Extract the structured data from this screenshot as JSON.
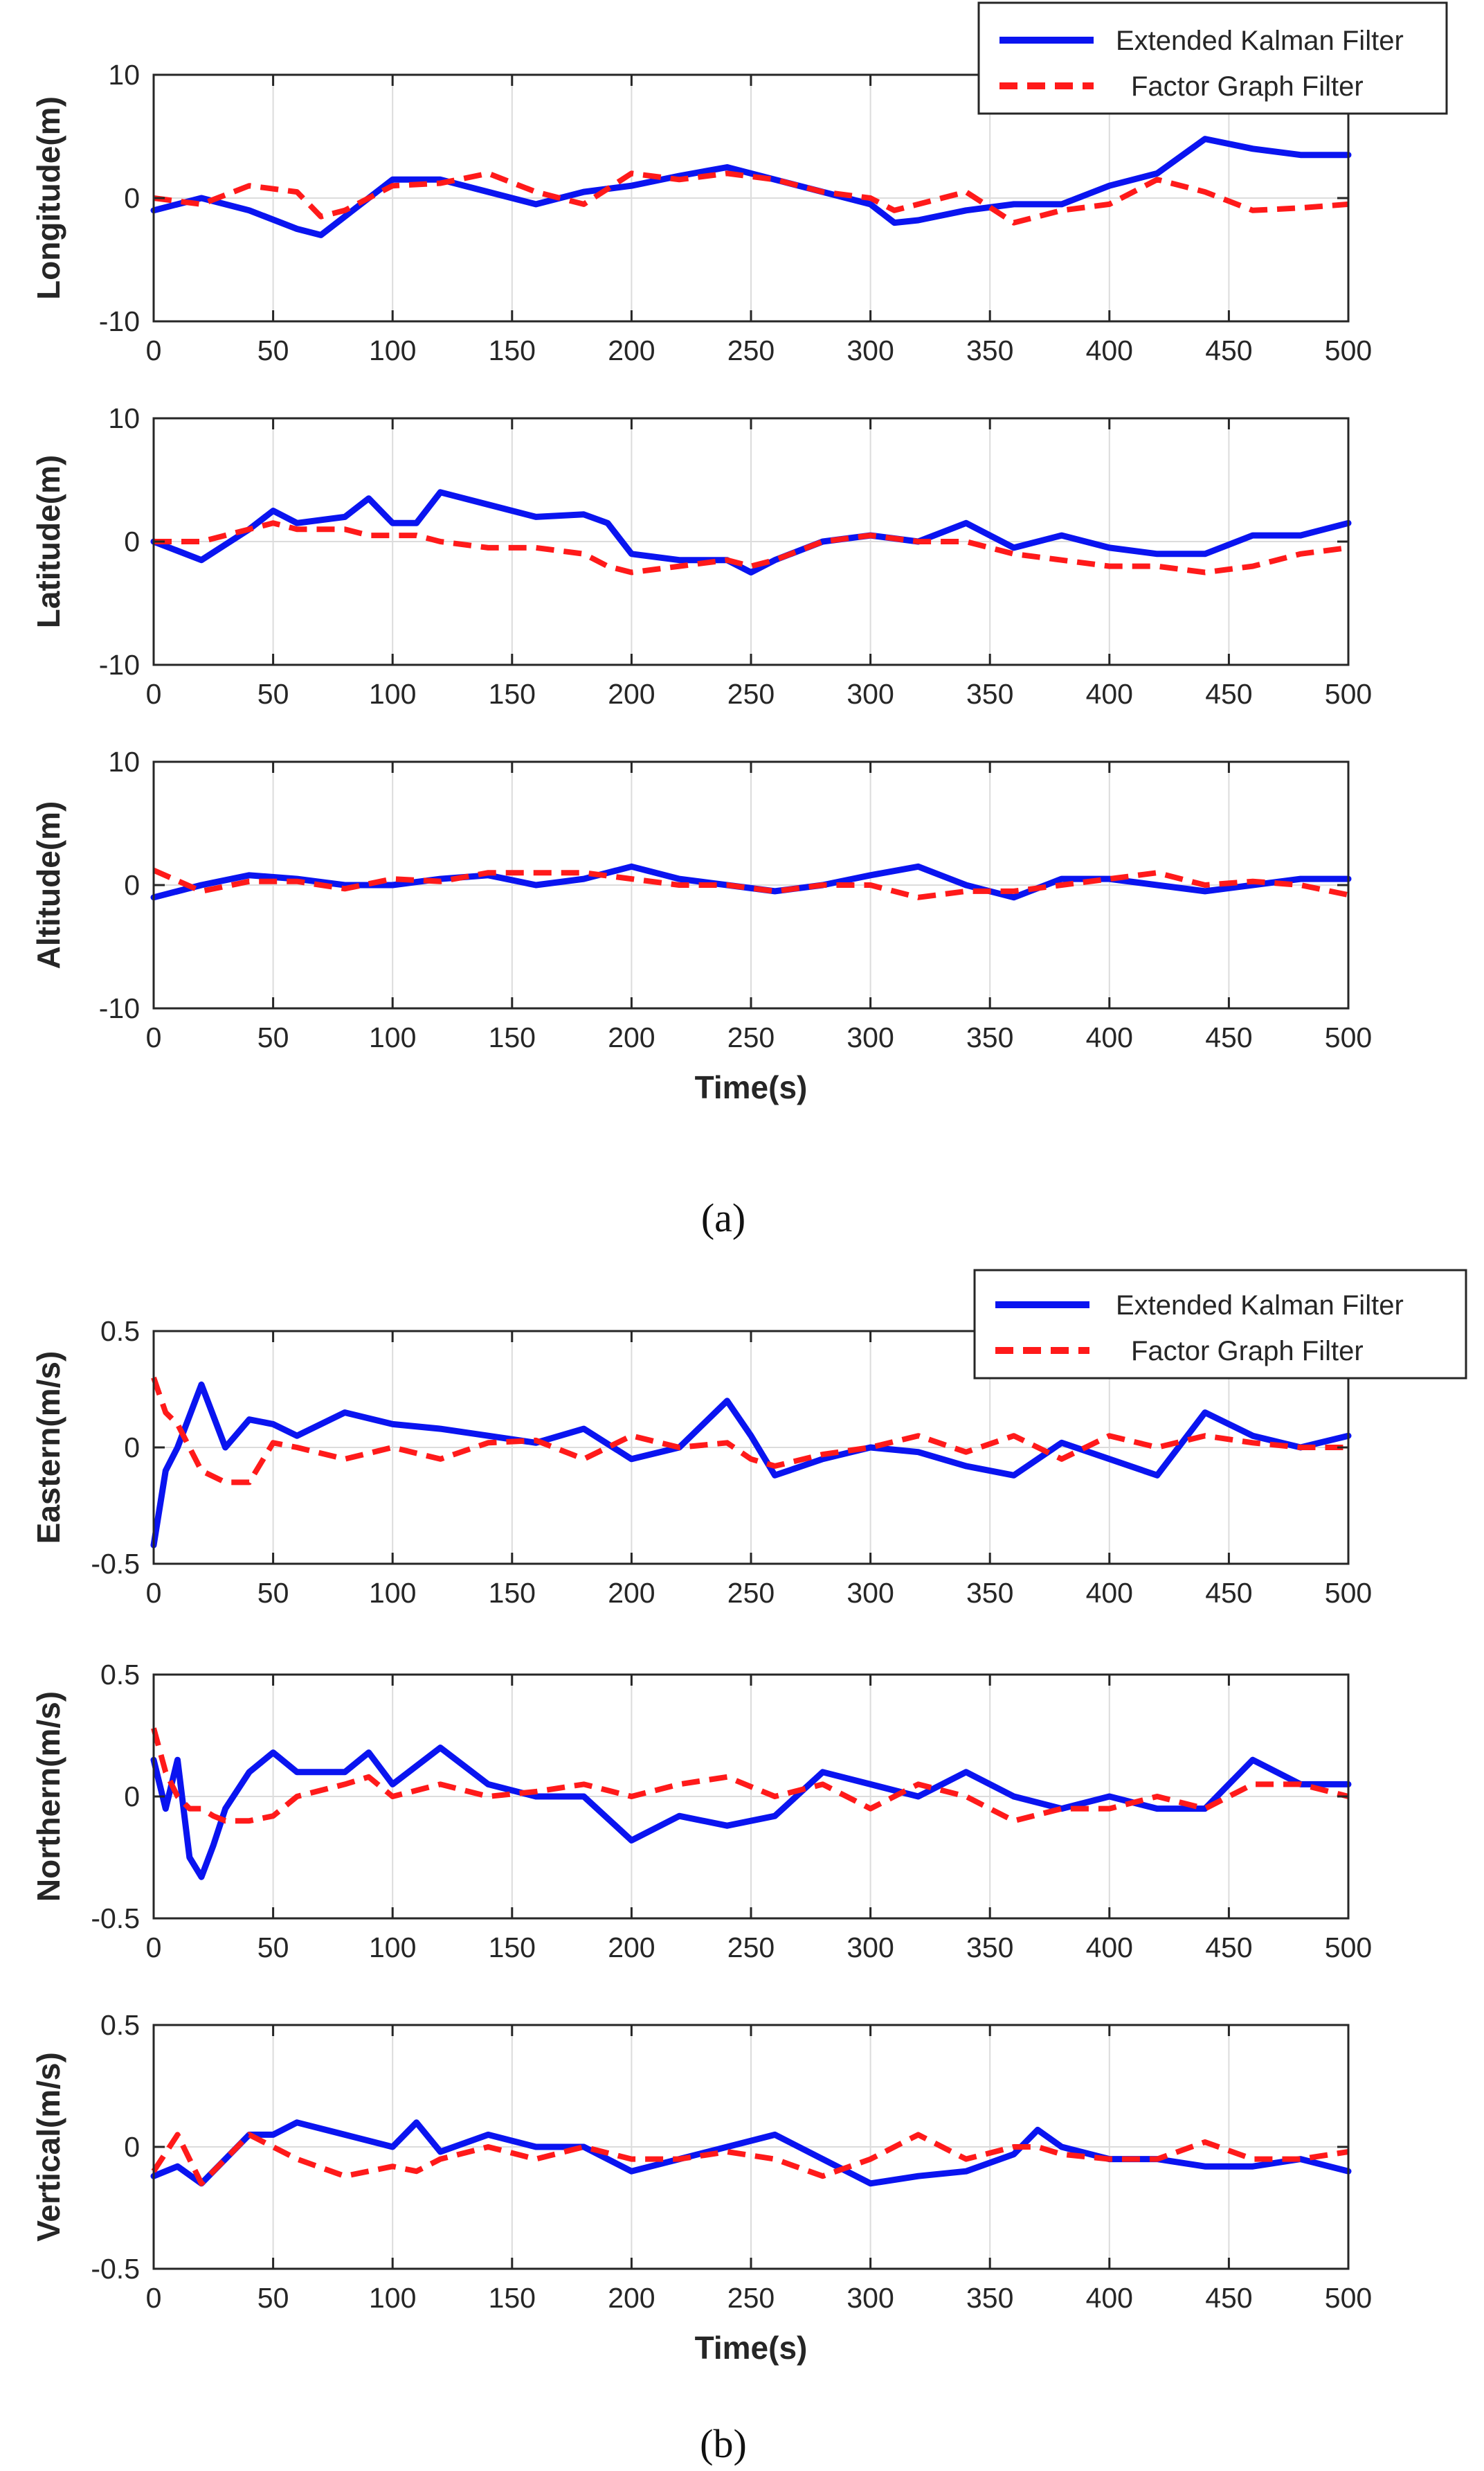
{
  "figure": {
    "caption_a": "(a)",
    "caption_b": "(b)",
    "xlabel": "Time(s)"
  },
  "colors": {
    "ekf": "#0a14f0",
    "fgf": "#ff1a1a",
    "grid": "#dcdcdc",
    "axis": "#262626"
  },
  "legend_a": {
    "ekf": "Extended Kalman Filter",
    "fgf": "Factor Graph Filter"
  },
  "legend_b": {
    "ekf": "Extended Kalman Filter",
    "fgf": "Factor Graph Filter"
  },
  "chart_data": [
    {
      "type": "line",
      "panel": "a1",
      "ylabel": "Longitude(m)",
      "xlabel": "",
      "xlim": [
        0,
        500
      ],
      "ylim": [
        -10,
        10
      ],
      "xticks": [
        0,
        50,
        100,
        150,
        200,
        250,
        300,
        350,
        400,
        450,
        500
      ],
      "yticks": [
        -10,
        0,
        10
      ],
      "x": [
        0,
        20,
        40,
        60,
        70,
        80,
        100,
        120,
        140,
        160,
        180,
        200,
        220,
        240,
        260,
        280,
        300,
        310,
        320,
        340,
        360,
        380,
        400,
        420,
        440,
        460,
        480,
        500
      ],
      "series": [
        {
          "name": "Extended Kalman Filter",
          "values": [
            -1,
            0,
            -1,
            -2.5,
            -3,
            -1.5,
            1.5,
            1.5,
            0.5,
            -0.5,
            0.5,
            1,
            1.8,
            2.5,
            1.5,
            0.5,
            -0.5,
            -2,
            -1.8,
            -1,
            -0.5,
            -0.5,
            1,
            2,
            4.8,
            4,
            3.5,
            3.5
          ]
        },
        {
          "name": "Factor Graph Filter",
          "values": [
            0,
            -0.5,
            1,
            0.5,
            -1.5,
            -1,
            1,
            1.2,
            2,
            0.5,
            -0.5,
            2,
            1.5,
            2,
            1.5,
            0.5,
            0,
            -1,
            -0.5,
            0.5,
            -2,
            -1,
            -0.5,
            1.5,
            0.5,
            -1,
            -0.8,
            -0.5
          ]
        }
      ]
    },
    {
      "type": "line",
      "panel": "a2",
      "ylabel": "Latitude(m)",
      "xlabel": "",
      "xlim": [
        0,
        500
      ],
      "ylim": [
        -10,
        10
      ],
      "xticks": [
        0,
        50,
        100,
        150,
        200,
        250,
        300,
        350,
        400,
        450,
        500
      ],
      "yticks": [
        -10,
        0,
        10
      ],
      "x": [
        0,
        20,
        40,
        50,
        60,
        80,
        90,
        100,
        110,
        120,
        140,
        160,
        180,
        190,
        200,
        220,
        240,
        250,
        260,
        280,
        300,
        320,
        340,
        360,
        380,
        400,
        420,
        440,
        460,
        480,
        500
      ],
      "series": [
        {
          "name": "Extended Kalman Filter",
          "values": [
            0,
            -1.5,
            1,
            2.5,
            1.5,
            2,
            3.5,
            1.5,
            1.5,
            4,
            3,
            2,
            2.2,
            1.5,
            -1,
            -1.5,
            -1.5,
            -2.5,
            -1.5,
            0,
            0.5,
            0,
            1.5,
            -0.5,
            0.5,
            -0.5,
            -1,
            -1,
            0.5,
            0.5,
            1.5
          ]
        },
        {
          "name": "Factor Graph Filter",
          "values": [
            0,
            0,
            1,
            1.5,
            1,
            1,
            0.5,
            0.5,
            0.5,
            0,
            -0.5,
            -0.5,
            -1,
            -2,
            -2.5,
            -2,
            -1.5,
            -2,
            -1.5,
            0,
            0.5,
            0,
            0,
            -1,
            -1.5,
            -2,
            -2,
            -2.5,
            -2,
            -1,
            -0.5
          ]
        }
      ]
    },
    {
      "type": "line",
      "panel": "a3",
      "ylabel": "Altitude(m)",
      "xlabel": "Time(s)",
      "xlim": [
        0,
        500
      ],
      "ylim": [
        -10,
        10
      ],
      "xticks": [
        0,
        50,
        100,
        150,
        200,
        250,
        300,
        350,
        400,
        450,
        500
      ],
      "yticks": [
        -10,
        0,
        10
      ],
      "x": [
        0,
        20,
        40,
        60,
        80,
        100,
        120,
        140,
        160,
        180,
        200,
        220,
        240,
        260,
        280,
        300,
        320,
        340,
        360,
        380,
        400,
        420,
        440,
        460,
        480,
        500
      ],
      "series": [
        {
          "name": "Extended Kalman Filter",
          "values": [
            -1,
            0,
            0.8,
            0.5,
            0,
            0,
            0.5,
            0.8,
            0,
            0.5,
            1.5,
            0.5,
            0,
            -0.5,
            0,
            0.8,
            1.5,
            0,
            -1,
            0.5,
            0.5,
            0,
            -0.5,
            0,
            0.5,
            0.5
          ]
        },
        {
          "name": "Factor Graph Filter",
          "values": [
            1.2,
            -0.5,
            0.3,
            0.3,
            -0.3,
            0.5,
            0.3,
            1,
            1,
            1,
            0.5,
            0,
            0,
            -0.5,
            0,
            0,
            -1,
            -0.5,
            -0.5,
            0,
            0.5,
            1,
            0,
            0.3,
            0,
            -0.8
          ]
        }
      ]
    },
    {
      "type": "line",
      "panel": "b1",
      "ylabel": "Eastern(m/s)",
      "xlabel": "",
      "xlim": [
        0,
        500
      ],
      "ylim": [
        -0.5,
        0.5
      ],
      "xticks": [
        0,
        50,
        100,
        150,
        200,
        250,
        300,
        350,
        400,
        450,
        500
      ],
      "yticks": [
        -0.5,
        0,
        0.5
      ],
      "x": [
        0,
        5,
        10,
        20,
        30,
        40,
        50,
        60,
        80,
        100,
        120,
        140,
        160,
        180,
        200,
        220,
        240,
        250,
        260,
        280,
        300,
        320,
        340,
        360,
        380,
        400,
        420,
        440,
        460,
        480,
        500
      ],
      "series": [
        {
          "name": "Extended Kalman Filter",
          "values": [
            -0.42,
            -0.1,
            0,
            0.27,
            0,
            0.12,
            0.1,
            0.05,
            0.15,
            0.1,
            0.08,
            0.05,
            0.02,
            0.08,
            -0.05,
            0,
            0.2,
            0.05,
            -0.12,
            -0.05,
            0,
            -0.02,
            -0.08,
            -0.12,
            0.02,
            -0.05,
            -0.12,
            0.15,
            0.05,
            0,
            0.05
          ]
        },
        {
          "name": "Factor Graph Filter",
          "values": [
            0.3,
            0.15,
            0.1,
            -0.1,
            -0.15,
            -0.15,
            0.02,
            0,
            -0.05,
            0,
            -0.05,
            0.02,
            0.03,
            -0.05,
            0.05,
            0,
            0.02,
            -0.05,
            -0.08,
            -0.03,
            0,
            0.05,
            -0.02,
            0.05,
            -0.05,
            0.05,
            0,
            0.05,
            0.02,
            0,
            0
          ]
        }
      ]
    },
    {
      "type": "line",
      "panel": "b2",
      "ylabel": "Northern(m/s)",
      "xlabel": "",
      "xlim": [
        0,
        500
      ],
      "ylim": [
        -0.5,
        0.5
      ],
      "xticks": [
        0,
        50,
        100,
        150,
        200,
        250,
        300,
        350,
        400,
        450,
        500
      ],
      "yticks": [
        -0.5,
        0,
        0.5
      ],
      "x": [
        0,
        5,
        10,
        15,
        20,
        25,
        30,
        40,
        50,
        60,
        80,
        90,
        100,
        120,
        140,
        160,
        180,
        200,
        220,
        240,
        260,
        280,
        300,
        320,
        340,
        360,
        380,
        400,
        420,
        440,
        460,
        480,
        500
      ],
      "series": [
        {
          "name": "Extended Kalman Filter",
          "values": [
            0.15,
            -0.05,
            0.15,
            -0.25,
            -0.33,
            -0.2,
            -0.05,
            0.1,
            0.18,
            0.1,
            0.1,
            0.18,
            0.05,
            0.2,
            0.05,
            0,
            0,
            -0.18,
            -0.08,
            -0.12,
            -0.08,
            0.1,
            0.05,
            0,
            0.1,
            0,
            -0.05,
            0,
            -0.05,
            -0.05,
            0.15,
            0.05,
            0.05
          ]
        },
        {
          "name": "Factor Graph Filter",
          "values": [
            0.28,
            0.1,
            0,
            -0.05,
            -0.05,
            -0.08,
            -0.1,
            -0.1,
            -0.08,
            0,
            0.05,
            0.08,
            0,
            0.05,
            0,
            0.02,
            0.05,
            0,
            0.05,
            0.08,
            0,
            0.05,
            -0.05,
            0.05,
            0,
            -0.1,
            -0.05,
            -0.05,
            0,
            -0.05,
            0.05,
            0.05,
            0
          ]
        }
      ]
    },
    {
      "type": "line",
      "panel": "b3",
      "ylabel": "Vertical(m/s)",
      "xlabel": "Time(s)",
      "xlim": [
        0,
        500
      ],
      "ylim": [
        -0.5,
        0.5
      ],
      "xticks": [
        0,
        50,
        100,
        150,
        200,
        250,
        300,
        350,
        400,
        450,
        500
      ],
      "yticks": [
        -0.5,
        0,
        0.5
      ],
      "x": [
        0,
        10,
        20,
        30,
        40,
        50,
        60,
        80,
        100,
        110,
        120,
        140,
        160,
        180,
        200,
        220,
        240,
        260,
        280,
        300,
        320,
        340,
        360,
        370,
        380,
        400,
        420,
        440,
        460,
        480,
        500
      ],
      "series": [
        {
          "name": "Extended Kalman Filter",
          "values": [
            -0.12,
            -0.08,
            -0.15,
            -0.05,
            0.05,
            0.05,
            0.1,
            0.05,
            0,
            0.1,
            -0.02,
            0.05,
            0,
            0,
            -0.1,
            -0.05,
            0,
            0.05,
            -0.05,
            -0.15,
            -0.12,
            -0.1,
            -0.03,
            0.07,
            0,
            -0.05,
            -0.05,
            -0.08,
            -0.08,
            -0.05,
            -0.1
          ]
        },
        {
          "name": "Factor Graph Filter",
          "values": [
            -0.1,
            0.05,
            -0.15,
            -0.05,
            0.05,
            0,
            -0.05,
            -0.12,
            -0.08,
            -0.1,
            -0.05,
            0,
            -0.05,
            0,
            -0.05,
            -0.05,
            -0.02,
            -0.05,
            -0.12,
            -0.05,
            0.05,
            -0.05,
            0,
            0,
            -0.03,
            -0.05,
            -0.05,
            0.02,
            -0.05,
            -0.05,
            -0.02
          ]
        }
      ]
    }
  ]
}
